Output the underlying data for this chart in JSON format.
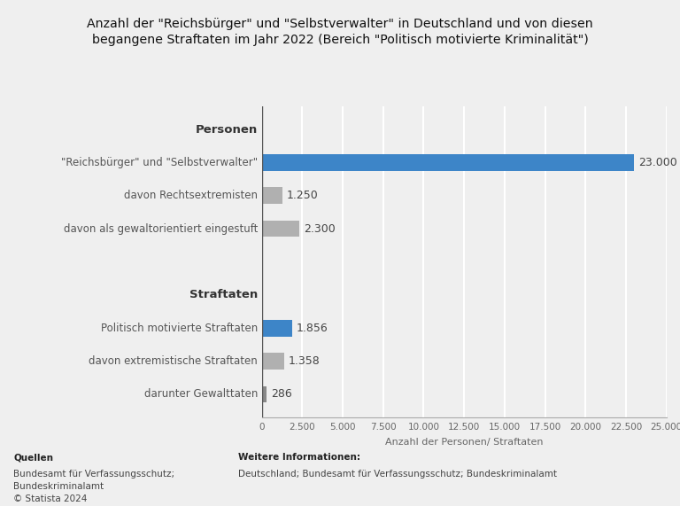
{
  "title_line1": "Anzahl der \"Reichsbürger\" und \"Selbstverwalter\" in Deutschland und von diesen",
  "title_line2": "begangene Straftaten im Jahr 2022 (Bereich \"Politisch motivierte Kriminalität\")",
  "rows": [
    {
      "label": "Personen",
      "value": null,
      "color": null,
      "is_header": true
    },
    {
      "label": "\"Reichsbürger\" und \"Selbstverwalter\"",
      "value": 23000,
      "color": "#3d85c8",
      "is_header": false,
      "value_label": "23.000"
    },
    {
      "label": "davon Rechtsextremisten",
      "value": 1250,
      "color": "#b0b0b0",
      "is_header": false,
      "value_label": "1.250"
    },
    {
      "label": "davon als gewaltorientiert eingestuft",
      "value": 2300,
      "color": "#b0b0b0",
      "is_header": false,
      "value_label": "2.300"
    },
    {
      "label": "",
      "value": null,
      "color": null,
      "is_header": false,
      "is_spacer": true
    },
    {
      "label": "Straftaten",
      "value": null,
      "color": null,
      "is_header": true
    },
    {
      "label": "Politisch motivierte Straftaten",
      "value": 1856,
      "color": "#3d85c8",
      "is_header": false,
      "value_label": "1.856"
    },
    {
      "label": "davon extremistische Straftaten",
      "value": 1358,
      "color": "#b0b0b0",
      "is_header": false,
      "value_label": "1.358"
    },
    {
      "label": "darunter Gewalttaten",
      "value": 286,
      "color": "#888888",
      "is_header": false,
      "value_label": "286"
    }
  ],
  "xlabel": "Anzahl der Personen/ Straftaten",
  "xlim": [
    0,
    25000
  ],
  "xticks": [
    0,
    2500,
    5000,
    7500,
    10000,
    12500,
    15000,
    17500,
    20000,
    22500,
    25000
  ],
  "xtick_labels": [
    "0",
    "2.500",
    "5.000",
    "7.500",
    "10.000",
    "12.500",
    "15.000",
    "17.500",
    "20.000",
    "22.500",
    "25.000"
  ],
  "background_color": "#efefef",
  "plot_bg_color": "#efefef",
  "grid_color": "#ffffff",
  "bar_height": 0.5,
  "footer_left_bold": "Quellen",
  "footer_left": "Bundesamt für Verfassungsschutz;\nBundeskriminalamt\n© Statista 2024",
  "footer_right_bold": "Weitere Informationen:",
  "footer_right": "Deutschland; Bundesamt für Verfassungsschutz; Bundeskriminalamt"
}
